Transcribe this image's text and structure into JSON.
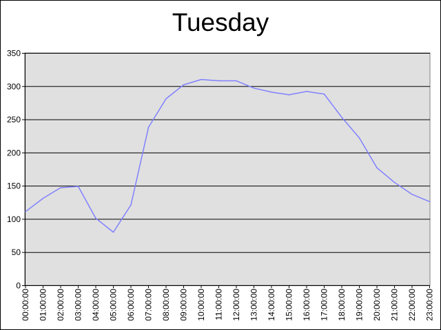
{
  "chart_data": {
    "type": "line",
    "title": "Tuesday",
    "xlabel": "",
    "ylabel": "",
    "categories": [
      "00:00:00",
      "01:00:00",
      "02:00:00",
      "03:00:00",
      "04:00:00",
      "05:00:00",
      "06:00:00",
      "07:00:00",
      "08:00:00",
      "09:00:00",
      "10:00:00",
      "11:00:00",
      "12:00:00",
      "13:00:00",
      "14:00:00",
      "15:00:00",
      "16:00:00",
      "17:00:00",
      "18:00:00",
      "19:00:00",
      "20:00:00",
      "21:00:00",
      "22:00:00",
      "23:00:00"
    ],
    "series": [
      {
        "values": [
          111,
          131,
          147,
          149,
          101,
          80,
          121,
          238,
          281,
          302,
          310,
          308,
          308,
          297,
          291,
          287,
          292,
          288,
          253,
          222,
          177,
          155,
          137,
          126
        ],
        "color": "#8080ff"
      }
    ],
    "ylim": [
      0,
      350
    ],
    "yticks": [
      0,
      50,
      100,
      150,
      200,
      250,
      300,
      350
    ],
    "grid": true,
    "legend": "none",
    "plot_background": "#e0e0e0",
    "gridline_color": "#000000"
  }
}
